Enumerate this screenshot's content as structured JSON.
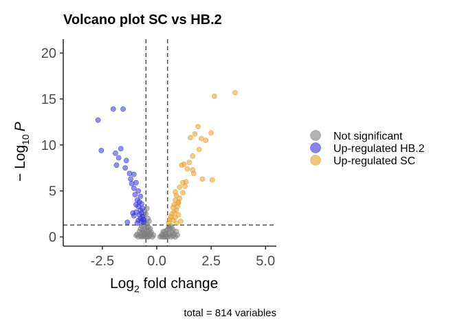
{
  "chart_data": {
    "type": "scatter",
    "title": "Volcano plot SC vs HB.2",
    "xlabel_base": "Log",
    "xlabel_sub": "2",
    "xlabel_rest": " fold change",
    "ylabel_prefix": "− Log",
    "ylabel_sub": "10",
    "ylabel_var": "P",
    "caption": "total = 814 variables",
    "xlim": [
      -4.3,
      5.5
    ],
    "ylim": [
      -1,
      21.5
    ],
    "xticks": [
      -2.5,
      0.0,
      2.5,
      5.0
    ],
    "xtick_labels": [
      "-2.5",
      "0.0",
      "2.5",
      "5.0"
    ],
    "yticks": [
      0,
      5,
      10,
      15,
      20
    ],
    "ytick_labels": [
      "0",
      "5",
      "10",
      "15",
      "20"
    ],
    "fc_cutoffs": [
      -0.5,
      0.5
    ],
    "p_cutoff": 1.3,
    "grid": false,
    "legend_position": "right",
    "series": [
      {
        "name": "Not significant",
        "color": "#7f7f7f",
        "points": [
          [
            -0.45,
            3.1
          ],
          [
            -0.55,
            2.8
          ],
          [
            -0.5,
            2.5
          ],
          [
            -0.6,
            2.3
          ],
          [
            -0.4,
            2.0
          ],
          [
            -0.65,
            1.9
          ],
          [
            -0.35,
            1.7
          ],
          [
            -0.55,
            1.6
          ],
          [
            -0.45,
            1.4
          ],
          [
            -0.6,
            1.3
          ],
          [
            -0.7,
            1.2
          ],
          [
            -0.4,
            1.1
          ],
          [
            -0.5,
            1.0
          ],
          [
            -0.75,
            0.9
          ],
          [
            -0.3,
            0.9
          ],
          [
            -0.55,
            0.8
          ],
          [
            -0.65,
            0.7
          ],
          [
            -0.35,
            0.7
          ],
          [
            -0.45,
            0.6
          ],
          [
            -0.8,
            0.6
          ],
          [
            -0.6,
            0.5
          ],
          [
            -0.25,
            0.5
          ],
          [
            -0.5,
            0.4
          ],
          [
            -0.7,
            0.4
          ],
          [
            -0.4,
            0.3
          ],
          [
            -0.9,
            0.3
          ],
          [
            -0.55,
            0.2
          ],
          [
            -0.3,
            0.2
          ],
          [
            -0.65,
            0.15
          ],
          [
            -0.45,
            0.1
          ],
          [
            -0.75,
            0.1
          ],
          [
            -0.35,
            0.05
          ],
          [
            -0.6,
            0.05
          ],
          [
            -0.5,
            0.0
          ],
          [
            -0.85,
            0.0
          ],
          [
            -0.2,
            0.0
          ],
          [
            -0.4,
            0.0
          ],
          [
            -0.7,
            0.0
          ],
          [
            -0.3,
            0.4
          ],
          [
            -0.15,
            0.2
          ],
          [
            -0.95,
            0.15
          ],
          [
            -0.55,
            0.35
          ],
          [
            0.15,
            0.0
          ],
          [
            0.2,
            0.1
          ],
          [
            0.25,
            0.0
          ],
          [
            0.3,
            0.2
          ],
          [
            0.35,
            0.0
          ],
          [
            0.4,
            0.3
          ],
          [
            0.45,
            0.1
          ],
          [
            0.5,
            0.0
          ],
          [
            0.55,
            0.4
          ],
          [
            0.6,
            0.2
          ],
          [
            0.65,
            0.0
          ],
          [
            0.7,
            0.5
          ],
          [
            0.75,
            0.1
          ],
          [
            0.8,
            0.3
          ],
          [
            0.85,
            0.0
          ],
          [
            0.9,
            0.6
          ],
          [
            0.5,
            0.8
          ],
          [
            0.6,
            0.9
          ],
          [
            0.7,
            1.0
          ],
          [
            0.55,
            1.1
          ],
          [
            0.65,
            1.2
          ],
          [
            0.45,
            0.7
          ],
          [
            0.3,
            0.6
          ],
          [
            0.95,
            0.2
          ],
          [
            0.4,
            0.0
          ],
          [
            0.75,
            0.7
          ],
          [
            0.25,
            0.3
          ],
          [
            0.35,
            0.5
          ]
        ]
      },
      {
        "name": "Up-regulated HB.2",
        "color": "#3333dd",
        "points": [
          [
            -2.7,
            12.7
          ],
          [
            -2.0,
            13.9
          ],
          [
            -1.55,
            13.9
          ],
          [
            -2.55,
            9.4
          ],
          [
            -1.9,
            9.1
          ],
          [
            -1.65,
            9.6
          ],
          [
            -1.75,
            8.6
          ],
          [
            -1.4,
            8.3
          ],
          [
            -1.85,
            7.8
          ],
          [
            -1.45,
            7.5
          ],
          [
            -1.25,
            6.9
          ],
          [
            -1.05,
            6.8
          ],
          [
            -1.2,
            6.3
          ],
          [
            -1.15,
            5.8
          ],
          [
            -0.95,
            5.9
          ],
          [
            -1.05,
            5.3
          ],
          [
            -0.85,
            5.0
          ],
          [
            -1.0,
            4.6
          ],
          [
            -0.75,
            4.4
          ],
          [
            -0.9,
            4.0
          ],
          [
            -0.8,
            3.8
          ],
          [
            -0.7,
            3.6
          ],
          [
            -0.85,
            3.3
          ],
          [
            -0.65,
            3.1
          ],
          [
            -0.75,
            2.9
          ],
          [
            -0.95,
            2.7
          ],
          [
            -0.7,
            2.6
          ],
          [
            -0.8,
            2.4
          ],
          [
            -0.65,
            2.2
          ],
          [
            -0.75,
            2.0
          ],
          [
            -0.6,
            1.9
          ],
          [
            -0.85,
            1.8
          ],
          [
            -0.7,
            1.7
          ],
          [
            -0.6,
            1.6
          ],
          [
            -0.9,
            1.5
          ],
          [
            -1.35,
            1.6
          ],
          [
            -1.05,
            2.3
          ],
          [
            -1.1,
            2.6
          ],
          [
            -0.95,
            3.5
          ]
        ]
      },
      {
        "name": "Up-regulated SC",
        "color": "#e69f2a",
        "points": [
          [
            2.65,
            15.3
          ],
          [
            3.6,
            15.7
          ],
          [
            1.9,
            12.0
          ],
          [
            1.75,
            11.2
          ],
          [
            2.5,
            11.3
          ],
          [
            1.55,
            10.8
          ],
          [
            2.25,
            10.5
          ],
          [
            2.05,
            10.7
          ],
          [
            1.95,
            9.5
          ],
          [
            1.65,
            8.8
          ],
          [
            1.5,
            8.1
          ],
          [
            1.25,
            7.9
          ],
          [
            1.15,
            7.8
          ],
          [
            1.4,
            7.4
          ],
          [
            1.65,
            7.3
          ],
          [
            1.7,
            6.9
          ],
          [
            2.1,
            6.3
          ],
          [
            2.55,
            6.2
          ],
          [
            1.35,
            6.0
          ],
          [
            1.2,
            5.9
          ],
          [
            1.05,
            5.4
          ],
          [
            0.85,
            4.9
          ],
          [
            1.2,
            4.8
          ],
          [
            0.9,
            4.5
          ],
          [
            1.05,
            4.2
          ],
          [
            0.85,
            4.0
          ],
          [
            1.0,
            3.8
          ],
          [
            0.8,
            3.5
          ],
          [
            0.95,
            3.3
          ],
          [
            0.75,
            3.2
          ],
          [
            0.9,
            2.9
          ],
          [
            0.8,
            2.7
          ],
          [
            0.7,
            2.5
          ],
          [
            1.0,
            2.4
          ],
          [
            0.65,
            2.2
          ],
          [
            0.85,
            2.1
          ],
          [
            0.6,
            1.9
          ],
          [
            0.75,
            1.8
          ],
          [
            1.1,
            1.7
          ],
          [
            0.55,
            1.6
          ],
          [
            0.9,
            1.5
          ],
          [
            1.0,
            3.7
          ],
          [
            1.3,
            5.5
          ]
        ]
      }
    ]
  }
}
